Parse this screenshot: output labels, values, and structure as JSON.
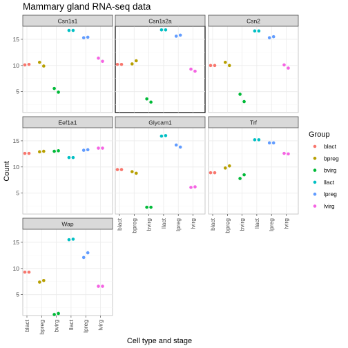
{
  "chart_data": {
    "type": "scatter",
    "title": "Mammary gland RNA-seq data",
    "xlabel": "Cell type and stage",
    "ylabel": "Count",
    "categories": [
      "blact",
      "bpreg",
      "bvirg",
      "llact",
      "lpreg",
      "lvirg"
    ],
    "ylim": [
      1,
      17.5
    ],
    "yticks": [
      5,
      10,
      15
    ],
    "grid": true,
    "legend": {
      "title": "Group",
      "placement": "right",
      "entries": [
        "blact",
        "bpreg",
        "bvirg",
        "llact",
        "lpreg",
        "lvirg"
      ]
    },
    "colors": {
      "blact": "#F8766D",
      "bpreg": "#B79F00",
      "bvirg": "#00BA38",
      "llact": "#00BFC4",
      "lpreg": "#619CFF",
      "lvirg": "#F564E3"
    },
    "panels": [
      {
        "name": "Csn1s1",
        "highlight": false,
        "points": {
          "blact": [
            10.1,
            10.2
          ],
          "bpreg": [
            10.6,
            9.9
          ],
          "bvirg": [
            5.6,
            4.9
          ],
          "llact": [
            16.7,
            16.7
          ],
          "lpreg": [
            15.3,
            15.4
          ],
          "lvirg": [
            11.4,
            10.8
          ]
        }
      },
      {
        "name": "Csn1s2a",
        "highlight": true,
        "points": {
          "blact": [
            10.2,
            10.2
          ],
          "bpreg": [
            10.3,
            10.9
          ],
          "bvirg": [
            3.6,
            3.0
          ],
          "llact": [
            16.8,
            16.8
          ],
          "lpreg": [
            15.6,
            15.8
          ],
          "lvirg": [
            9.3,
            8.9
          ]
        }
      },
      {
        "name": "Csn2",
        "highlight": false,
        "points": {
          "blact": [
            10.0,
            10.0
          ],
          "bpreg": [
            10.6,
            10.0
          ],
          "bvirg": [
            4.5,
            3.1
          ],
          "llact": [
            16.6,
            16.6
          ],
          "lpreg": [
            15.3,
            15.5
          ],
          "lvirg": [
            10.1,
            9.5
          ]
        }
      },
      {
        "name": "Eef1a1",
        "highlight": false,
        "points": {
          "blact": [
            12.6,
            12.6
          ],
          "bpreg": [
            12.9,
            13.0
          ],
          "bvirg": [
            13.0,
            13.1
          ],
          "llact": [
            11.8,
            11.8
          ],
          "lpreg": [
            13.2,
            13.3
          ],
          "lvirg": [
            13.6,
            13.6
          ]
        }
      },
      {
        "name": "Glycam1",
        "highlight": false,
        "points": {
          "blact": [
            9.5,
            9.5
          ],
          "bpreg": [
            9.1,
            8.8
          ],
          "bvirg": [
            2.3,
            2.3
          ],
          "llact": [
            15.9,
            16.0
          ],
          "lpreg": [
            14.2,
            13.8
          ],
          "lvirg": [
            6.1,
            6.2
          ]
        }
      },
      {
        "name": "Trf",
        "highlight": false,
        "points": {
          "blact": [
            8.9,
            8.9
          ],
          "bpreg": [
            9.8,
            10.2
          ],
          "bvirg": [
            7.8,
            8.5
          ],
          "llact": [
            15.2,
            15.2
          ],
          "lpreg": [
            14.6,
            14.6
          ],
          "lvirg": [
            12.6,
            12.5
          ]
        }
      },
      {
        "name": "Wap",
        "highlight": false,
        "points": {
          "blact": [
            9.3,
            9.3
          ],
          "bpreg": [
            7.4,
            7.7
          ],
          "bvirg": [
            1.2,
            1.4
          ],
          "llact": [
            15.5,
            15.6
          ],
          "lpreg": [
            12.1,
            13.0
          ],
          "lvirg": [
            6.6,
            6.6
          ]
        }
      }
    ]
  }
}
